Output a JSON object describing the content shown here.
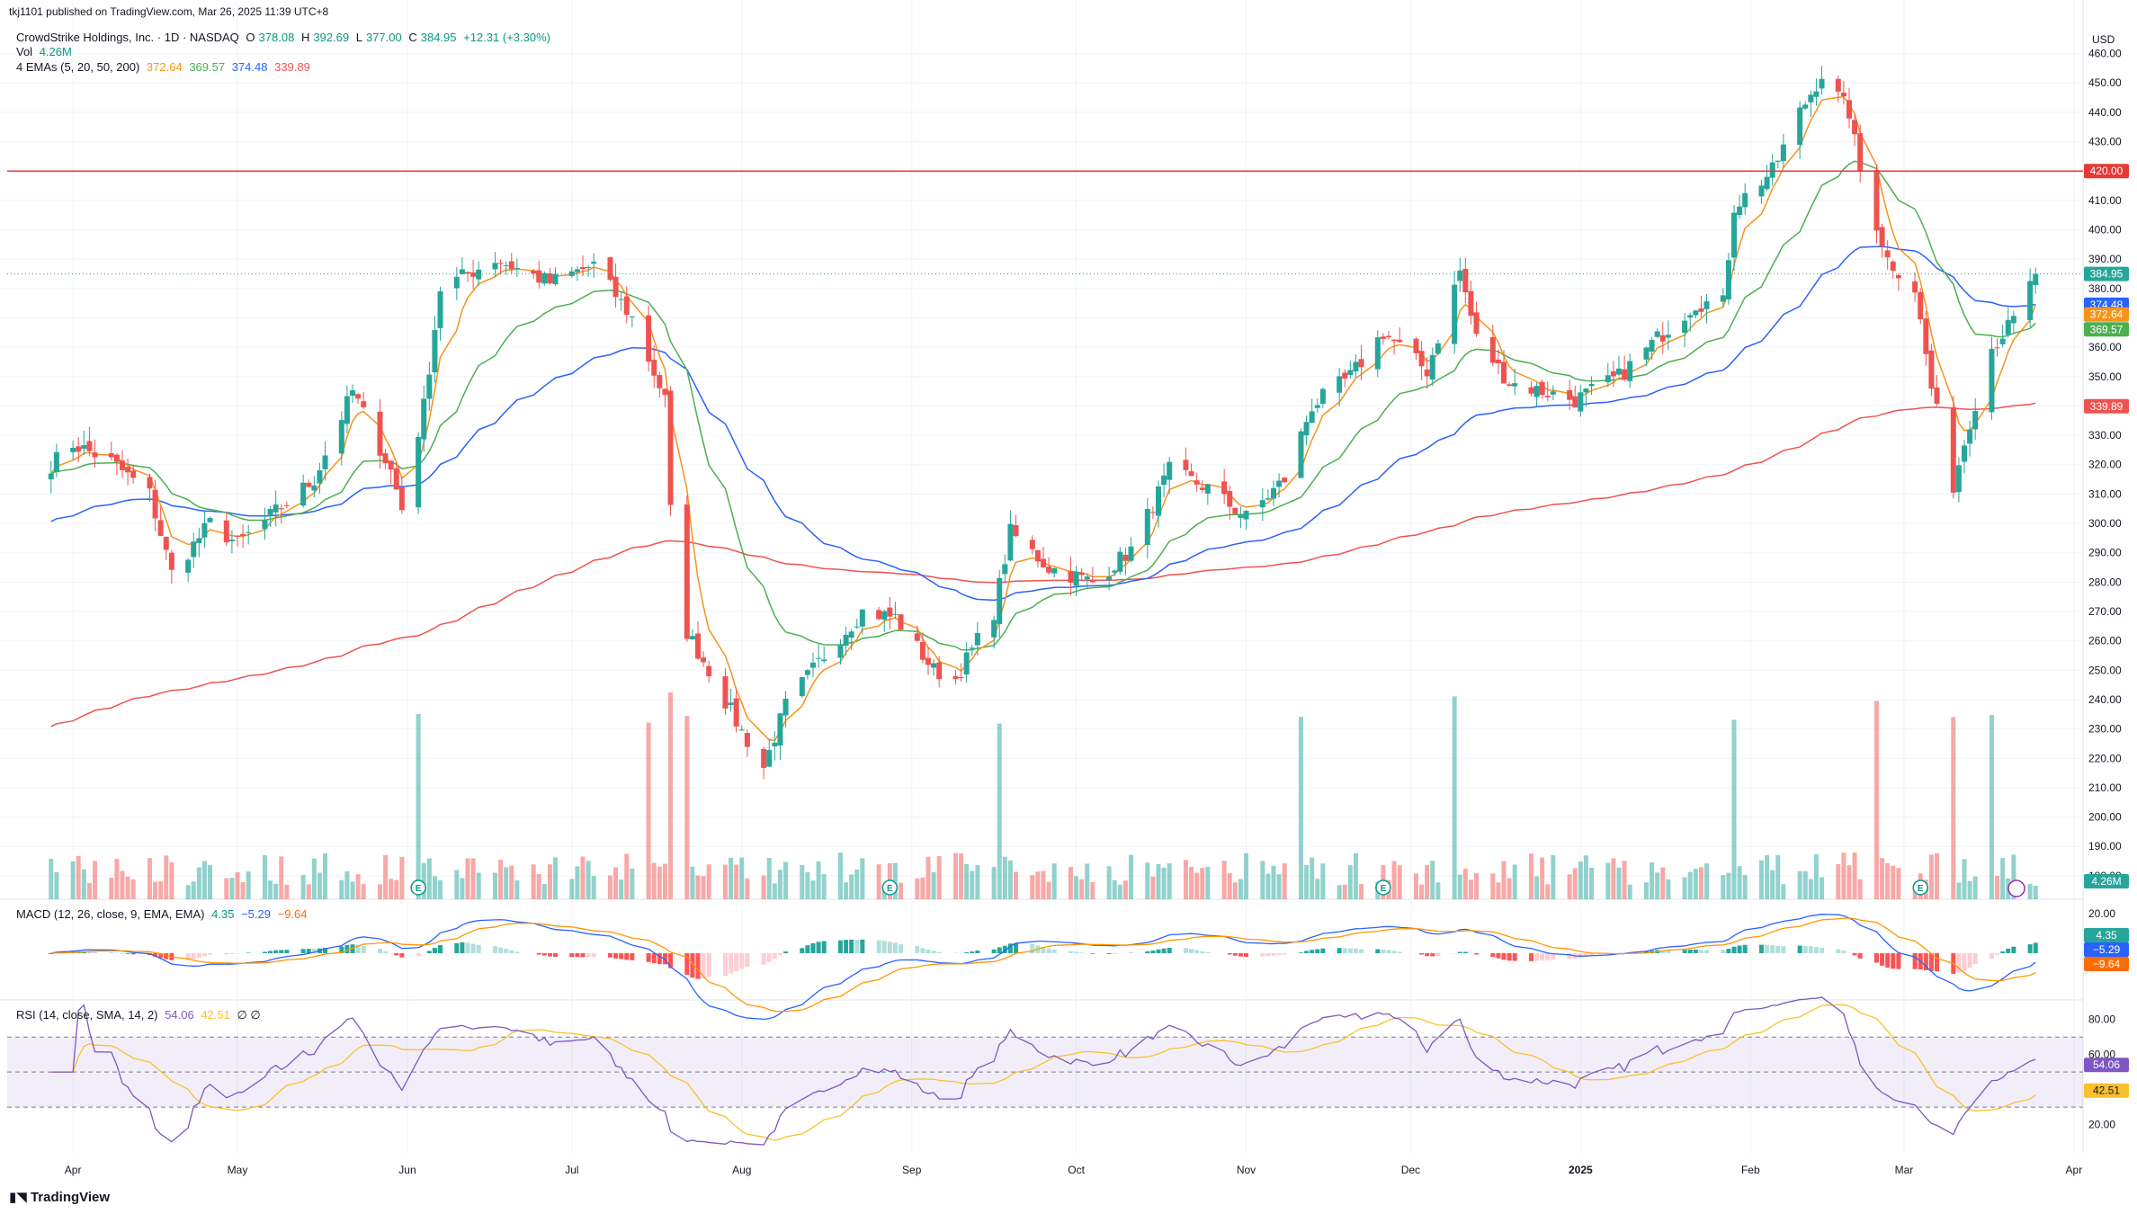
{
  "publisher": "tkj1101 published on TradingView.com, Mar 26, 2025 11:39 UTC+8",
  "footer_logo": "TradingView",
  "colors": {
    "up": "#26a69a",
    "down": "#ef5350",
    "ema5": "#f7931a",
    "ema20": "#4caf50",
    "ema50": "#2962ff",
    "ema200": "#ef5350",
    "resistance": "#e53935",
    "macd": "#2962ff",
    "signal": "#ff9800",
    "rsi": "#7e57c2",
    "rsi_sma": "#fbc02d"
  },
  "header": {
    "symbol": "CrowdStrike Holdings, Inc. · 1D · NASDAQ",
    "o_label": "O",
    "o": "378.08",
    "h_label": "H",
    "h": "392.69",
    "l_label": "L",
    "l": "377.00",
    "c_label": "C",
    "c": "384.95",
    "change": "+12.31 (+3.30%)",
    "vol_label": "Vol",
    "vol": "4.26M",
    "ema_label": "4 EMAs (5, 20, 50, 200)",
    "ema5": "372.64",
    "ema20": "369.57",
    "ema50": "374.48",
    "ema200": "339.89",
    "macd_label": "MACD (12, 26, close, 9, EMA, EMA)",
    "macd_hist": "4.35",
    "macd_line": "−5.29",
    "macd_signal": "−9.64",
    "rsi_label": "RSI (14, close, SMA, 14, 2)",
    "rsi": "54.06",
    "rsi_sma": "42.51",
    "rsi_extra": "∅ ∅"
  },
  "chart_data": [
    {
      "type": "candlestick",
      "title": "CrowdStrike Holdings, Inc. · 1D · NASDAQ",
      "currency": "USD",
      "x_ticks": [
        "Apr",
        "May",
        "Jun",
        "Jul",
        "Aug",
        "Sep",
        "Oct",
        "Nov",
        "Dec",
        "2025",
        "Feb",
        "Mar",
        "Apr"
      ],
      "y_ticks": [
        180,
        190,
        200,
        210,
        220,
        230,
        240,
        250,
        260,
        270,
        280,
        290,
        300,
        310,
        320,
        330,
        340,
        350,
        360,
        370,
        380,
        390,
        400,
        410,
        420,
        430,
        440,
        450,
        460
      ],
      "ylim": [
        172,
        466
      ],
      "resistance_level": 420.0,
      "price_labels": {
        "last": "384.95",
        "ema50": "374.48",
        "ema5": "372.64",
        "ema20": "369.57",
        "ema200": "339.89",
        "resistance": "420.00",
        "volume": "4.26M"
      },
      "earnings_markers": [
        "Jun",
        "Aug",
        "Nov",
        "Mar"
      ],
      "key_points": [
        {
          "date": "2024-03-28",
          "close": 320
        },
        {
          "date": "2024-04-01",
          "close": 327
        },
        {
          "date": "2024-04-08",
          "close": 321
        },
        {
          "date": "2024-04-15",
          "close": 310
        },
        {
          "date": "2024-04-19",
          "close": 283
        },
        {
          "date": "2024-04-26",
          "close": 300
        },
        {
          "date": "2024-05-01",
          "close": 293
        },
        {
          "date": "2024-05-15",
          "close": 315
        },
        {
          "date": "2024-05-22",
          "close": 345
        },
        {
          "date": "2024-05-29",
          "close": 318
        },
        {
          "date": "2024-05-31",
          "close": 305
        },
        {
          "date": "2024-06-04",
          "close": 340
        },
        {
          "date": "2024-06-07",
          "close": 380
        },
        {
          "date": "2024-06-17",
          "close": 390
        },
        {
          "date": "2024-06-27",
          "close": 382
        },
        {
          "date": "2024-07-05",
          "close": 388
        },
        {
          "date": "2024-07-12",
          "close": 370
        },
        {
          "date": "2024-07-18",
          "close": 342
        },
        {
          "date": "2024-07-19",
          "close": 304
        },
        {
          "date": "2024-07-22",
          "close": 263
        },
        {
          "date": "2024-07-26",
          "close": 250
        },
        {
          "date": "2024-08-01",
          "close": 229
        },
        {
          "date": "2024-08-05",
          "close": 217
        },
        {
          "date": "2024-08-09",
          "close": 238
        },
        {
          "date": "2024-08-16",
          "close": 255
        },
        {
          "date": "2024-08-23",
          "close": 270
        },
        {
          "date": "2024-08-29",
          "close": 268
        },
        {
          "date": "2024-09-05",
          "close": 250
        },
        {
          "date": "2024-09-09",
          "close": 247
        },
        {
          "date": "2024-09-16",
          "close": 270
        },
        {
          "date": "2024-09-19",
          "close": 297
        },
        {
          "date": "2024-09-26",
          "close": 285
        },
        {
          "date": "2024-10-04",
          "close": 280
        },
        {
          "date": "2024-10-11",
          "close": 291
        },
        {
          "date": "2024-10-18",
          "close": 318
        },
        {
          "date": "2024-10-25",
          "close": 312
        },
        {
          "date": "2024-11-01",
          "close": 302
        },
        {
          "date": "2024-11-08",
          "close": 315
        },
        {
          "date": "2024-11-13",
          "close": 340
        },
        {
          "date": "2024-11-20",
          "close": 350
        },
        {
          "date": "2024-11-26",
          "close": 365
        },
        {
          "date": "2024-12-04",
          "close": 352
        },
        {
          "date": "2024-12-10",
          "close": 386
        },
        {
          "date": "2024-12-13",
          "close": 363
        },
        {
          "date": "2024-12-19",
          "close": 348
        },
        {
          "date": "2024-12-31",
          "close": 342
        },
        {
          "date": "2025-01-08",
          "close": 350
        },
        {
          "date": "2025-01-15",
          "close": 363
        },
        {
          "date": "2025-01-22",
          "close": 375
        },
        {
          "date": "2025-01-27",
          "close": 375
        },
        {
          "date": "2025-01-29",
          "close": 408
        },
        {
          "date": "2025-02-05",
          "close": 420
        },
        {
          "date": "2025-02-10",
          "close": 440
        },
        {
          "date": "2025-02-14",
          "close": 453
        },
        {
          "date": "2025-02-19",
          "close": 440
        },
        {
          "date": "2025-02-21",
          "close": 420
        },
        {
          "date": "2025-02-26",
          "close": 390
        },
        {
          "date": "2025-03-03",
          "close": 380
        },
        {
          "date": "2025-03-06",
          "close": 346
        },
        {
          "date": "2025-03-10",
          "close": 313
        },
        {
          "date": "2025-03-13",
          "close": 335
        },
        {
          "date": "2025-03-17",
          "close": 360
        },
        {
          "date": "2025-03-21",
          "close": 369
        },
        {
          "date": "2025-03-25",
          "close": 384.95
        }
      ]
    },
    {
      "type": "line",
      "title": "MACD (12, 26, close, 9, EMA, EMA)",
      "y_ticks": [
        20.0
      ],
      "values_last": {
        "histogram": 4.35,
        "macd": -5.29,
        "signal": -9.64
      }
    },
    {
      "type": "line",
      "title": "RSI (14, close, SMA, 14, 2)",
      "y_ticks": [
        20.0,
        40.0,
        60.0,
        80.0
      ],
      "bands": [
        30,
        50,
        70
      ],
      "values_last": {
        "rsi": 54.06,
        "sma": 42.51
      }
    }
  ]
}
